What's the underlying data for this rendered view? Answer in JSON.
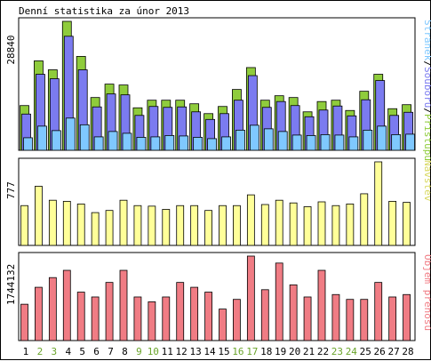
{
  "title": "Denní statistika za únor 2013",
  "days": [
    "1",
    "2",
    "3",
    "4",
    "5",
    "6",
    "7",
    "8",
    "9",
    "10",
    "11",
    "12",
    "13",
    "14",
    "15",
    "16",
    "17",
    "18",
    "19",
    "20",
    "21",
    "22",
    "23",
    "24",
    "25",
    "26",
    "27",
    "28"
  ],
  "weekend_days": [
    "2",
    "3",
    "9",
    "10",
    "16",
    "17",
    "23",
    "24"
  ],
  "colors": {
    "hits": "#8fcc3c",
    "files": "#7b7bf0",
    "pages": "#7fc8ff",
    "visits": "#ffff99",
    "kbytes": "#f07c84",
    "weekday_label": "#000000",
    "weekend_label": "#6aa42a",
    "text": "#000000"
  },
  "chart_data": [
    {
      "type": "bar",
      "ymax_label": "28840",
      "ylim": [
        0,
        28840
      ],
      "legend_parts": [
        {
          "text": "Stránek",
          "color": "#7fc8ff"
        },
        {
          "text": "/",
          "color": "#000000"
        },
        {
          "text": "Souborů",
          "color": "#7b7bf0"
        },
        {
          "text": "/",
          "color": "#000000"
        },
        {
          "text": "Přístupů",
          "color": "#8fcc3c"
        }
      ],
      "series": [
        {
          "name": "Přístupů",
          "values": [
            10000,
            20000,
            18000,
            28840,
            21000,
            11800,
            14800,
            14600,
            9500,
            11200,
            11200,
            11200,
            10400,
            8200,
            9800,
            13600,
            18500,
            11200,
            12200,
            11800,
            8600,
            10900,
            11200,
            8900,
            13200,
            17000,
            9300,
            10200
          ]
        },
        {
          "name": "Souborů",
          "values": [
            8100,
            17000,
            16000,
            25500,
            18000,
            9700,
            12600,
            12400,
            7800,
            9800,
            9600,
            9700,
            8600,
            6900,
            8200,
            11200,
            16700,
            9600,
            10900,
            10000,
            7500,
            9000,
            9900,
            7700,
            11300,
            15600,
            7800,
            8500
          ]
        },
        {
          "name": "Stránek",
          "values": [
            2800,
            5400,
            4400,
            7200,
            5700,
            3000,
            4200,
            3800,
            2900,
            3000,
            3300,
            3200,
            2900,
            2600,
            3000,
            4500,
            5600,
            4800,
            4200,
            3400,
            3300,
            3500,
            3400,
            3000,
            4500,
            5400,
            3500,
            3600
          ]
        }
      ]
    },
    {
      "type": "bar",
      "ymax_label": "777",
      "ylim": [
        0,
        777
      ],
      "legend_parts": [
        {
          "text": "Návštěv",
          "color": "#d8d860"
        }
      ],
      "series": [
        {
          "name": "Návštěv",
          "values": [
            370,
            550,
            420,
            410,
            385,
            305,
            325,
            420,
            370,
            365,
            335,
            370,
            370,
            325,
            370,
            370,
            470,
            380,
            420,
            395,
            360,
            405,
            370,
            385,
            480,
            777,
            410,
            400
          ]
        }
      ]
    },
    {
      "type": "bar",
      "ymax_label": "1744132",
      "ylim": [
        0,
        1744132
      ],
      "legend_parts": [
        {
          "text": "Objem přenosů",
          "color": "#f07c84"
        }
      ],
      "series": [
        {
          "name": "Objem přenosů",
          "values": [
            750000,
            1100000,
            1300000,
            1450000,
            1000000,
            900000,
            1200000,
            1450000,
            900000,
            800000,
            900000,
            1200000,
            1100000,
            1000000,
            650000,
            850000,
            1744132,
            1050000,
            1600000,
            1150000,
            900000,
            1450000,
            950000,
            850000,
            850000,
            1200000,
            900000,
            950000
          ]
        }
      ]
    }
  ]
}
